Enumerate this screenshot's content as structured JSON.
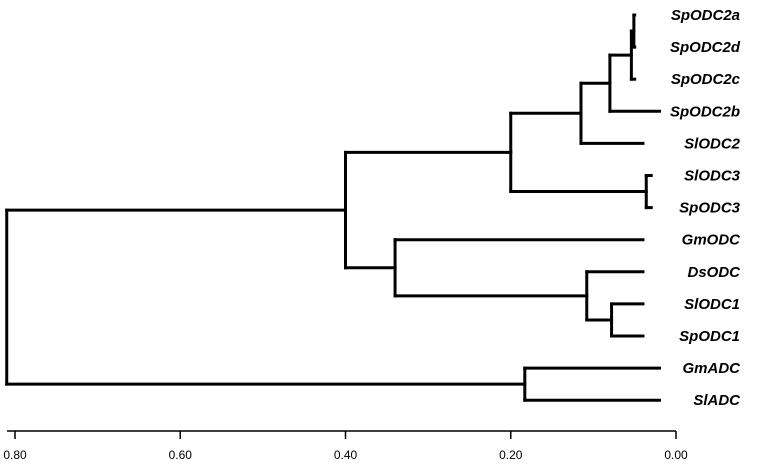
{
  "chart_data": {
    "type": "dendrogram",
    "axis": {
      "min": 0.0,
      "max": 0.8,
      "reversed": true,
      "ticks": [
        0.8,
        0.6,
        0.4,
        0.2,
        0.0
      ],
      "tick_labels": [
        "0.80",
        "0.60",
        "0.40",
        "0.20",
        "0.00"
      ]
    },
    "leaves": [
      {
        "name": "SpODC2a",
        "height": 0.05
      },
      {
        "name": "SpODC2d",
        "height": 0.05
      },
      {
        "name": "SpODC2c",
        "height": 0.05
      },
      {
        "name": "SpODC2b",
        "height": 0.02
      },
      {
        "name": "SlODC2",
        "height": 0.04
      },
      {
        "name": "SlODC3",
        "height": 0.03
      },
      {
        "name": "SpODC3",
        "height": 0.03
      },
      {
        "name": "GmODC",
        "height": 0.04
      },
      {
        "name": "DsODC",
        "height": 0.04
      },
      {
        "name": "SlODC1",
        "height": 0.04
      },
      {
        "name": "SpODC1",
        "height": 0.04
      },
      {
        "name": "GmADC",
        "height": 0.02
      },
      {
        "name": "SlADC",
        "height": 0.02
      }
    ],
    "clusters": [
      {
        "id": "c_ad",
        "children": [
          "SpODC2a",
          "SpODC2d"
        ],
        "height": 0.051
      },
      {
        "id": "c_adc",
        "children": [
          "c_ad",
          "SpODC2c"
        ],
        "height": 0.054
      },
      {
        "id": "c_adcb",
        "children": [
          "c_adc",
          "SpODC2b"
        ],
        "height": 0.08
      },
      {
        "id": "c_odc2",
        "children": [
          "c_adcb",
          "SlODC2"
        ],
        "height": 0.115
      },
      {
        "id": "c_odc3",
        "children": [
          "SlODC3",
          "SpODC3"
        ],
        "height": 0.036
      },
      {
        "id": "c_top",
        "children": [
          "c_odc2",
          "c_odc3"
        ],
        "height": 0.2
      },
      {
        "id": "c_odc1",
        "children": [
          "SlODC1",
          "SpODC1"
        ],
        "height": 0.078
      },
      {
        "id": "c_ds",
        "children": [
          "DsODC",
          "c_odc1"
        ],
        "height": 0.108
      },
      {
        "id": "c_mid",
        "children": [
          "GmODC",
          "c_ds"
        ],
        "height": 0.34
      },
      {
        "id": "c_odc",
        "children": [
          "c_top",
          "c_mid"
        ],
        "height": 0.4
      },
      {
        "id": "c_adc2",
        "children": [
          "GmADC",
          "SlADC"
        ],
        "height": 0.183
      },
      {
        "id": "root",
        "children": [
          "c_odc",
          "c_adc2"
        ],
        "height": 0.81
      }
    ]
  }
}
